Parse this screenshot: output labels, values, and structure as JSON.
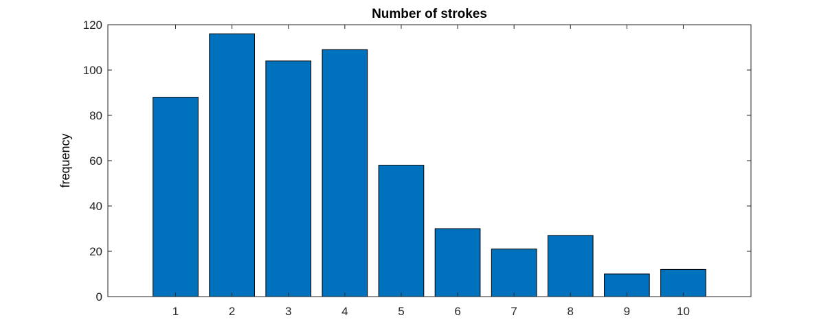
{
  "chart_data": {
    "type": "bar",
    "title": "Number of strokes",
    "xlabel": "",
    "ylabel": "frequency",
    "categories": [
      "1",
      "2",
      "3",
      "4",
      "5",
      "6",
      "7",
      "8",
      "9",
      "10"
    ],
    "x": [
      1,
      2,
      3,
      4,
      5,
      6,
      7,
      8,
      9,
      10
    ],
    "values": [
      88,
      116,
      104,
      109,
      58,
      30,
      21,
      27,
      10,
      12
    ],
    "xlim": [
      -0.2,
      11.2
    ],
    "ylim": [
      0,
      120
    ],
    "yticks": [
      0,
      20,
      40,
      60,
      80,
      100,
      120
    ],
    "ytick_labels": [
      "0",
      "20",
      "40",
      "60",
      "80",
      "100",
      "120"
    ],
    "grid": false,
    "bar_color": "#0072bd",
    "edge_color": "#000000"
  }
}
